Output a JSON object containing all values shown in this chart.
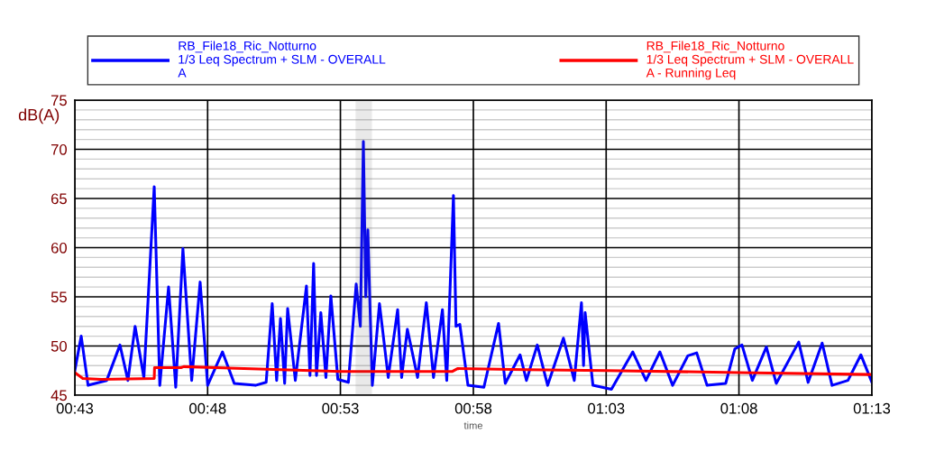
{
  "chart_data": {
    "type": "line",
    "xlabel": "time",
    "ylabel": "dB(A)",
    "xlim": [
      0.7167,
      1.2167
    ],
    "xticks": [
      {
        "value": 0.7167,
        "label": "00:43"
      },
      {
        "value": 0.8,
        "label": "00:48"
      },
      {
        "value": 0.8833,
        "label": "00:53"
      },
      {
        "value": 0.9667,
        "label": "00:58"
      },
      {
        "value": 1.05,
        "label": "01:03"
      },
      {
        "value": 1.1333,
        "label": "01:08"
      },
      {
        "value": 1.2167,
        "label": "01:13"
      }
    ],
    "ylim": [
      45,
      75
    ],
    "yticks": [
      45,
      {
        "value": 46,
        "label": null
      },
      {
        "value": 47,
        "label": null
      },
      {
        "value": 48,
        "label": null
      },
      {
        "value": 49,
        "label": null
      },
      50,
      {
        "value": 51,
        "label": null
      },
      {
        "value": 52,
        "label": null
      },
      {
        "value": 53,
        "label": null
      },
      {
        "value": 54,
        "label": null
      },
      55,
      {
        "value": 56,
        "label": null
      },
      {
        "value": 57,
        "label": null
      },
      {
        "value": 58,
        "label": null
      },
      {
        "value": 59,
        "label": null
      },
      60,
      {
        "value": 61,
        "label": null
      },
      {
        "value": 62,
        "label": null
      },
      {
        "value": 63,
        "label": null
      },
      {
        "value": 64,
        "label": null
      },
      65,
      {
        "value": 66,
        "label": null
      },
      {
        "value": 67,
        "label": null
      },
      {
        "value": 68,
        "label": null
      },
      {
        "value": 69,
        "label": null
      },
      70,
      {
        "value": 71,
        "label": null
      },
      {
        "value": 72,
        "label": null
      },
      {
        "value": 73,
        "label": null
      },
      {
        "value": 74,
        "label": null
      },
      75
    ],
    "grid": true,
    "legend": "top",
    "bands": [
      {
        "axis": "x",
        "from": 0.8932,
        "to": 0.9027,
        "color": "#555555"
      }
    ],
    "series": [
      {
        "name": "RB_File18_Ric_Notturno\n1/3 Leq Spectrum + SLM - OVERALL\nA",
        "color": "#0000ff",
        "x": [
          0.7167,
          0.7207,
          0.725,
          0.7367,
          0.745,
          0.75,
          0.7545,
          0.76,
          0.7665,
          0.77,
          0.7755,
          0.78,
          0.7845,
          0.79,
          0.7953,
          0.8,
          0.8093,
          0.8167,
          0.83,
          0.8367,
          0.8405,
          0.8433,
          0.8457,
          0.8483,
          0.8502,
          0.855,
          0.862,
          0.8642,
          0.8665,
          0.8683,
          0.871,
          0.8742,
          0.8773,
          0.8817,
          0.8883,
          0.8932,
          0.8958,
          0.8977,
          0.8992,
          0.9005,
          0.9033,
          0.9078,
          0.9133,
          0.9192,
          0.9217,
          0.9253,
          0.9317,
          0.9372,
          0.9417,
          0.9473,
          0.95,
          0.9542,
          0.9558,
          0.9582,
          0.9633,
          0.9733,
          0.9825,
          0.9867,
          0.996,
          1.0,
          1.0068,
          1.0133,
          1.0232,
          1.03,
          1.0345,
          1.0358,
          1.0368,
          1.0417,
          1.0533,
          1.0667,
          1.075,
          1.0837,
          1.0917,
          1.1012,
          1.1068,
          1.1133,
          1.125,
          1.1307,
          1.1352,
          1.1417,
          1.1505,
          1.1567,
          1.1708,
          1.1767,
          1.1855,
          1.1917,
          1.2017,
          1.2098,
          1.2167
        ],
        "values": [
          47.5,
          51.0,
          46.0,
          46.5,
          50.1,
          46.5,
          52.0,
          46.8,
          66.2,
          46.0,
          56.0,
          45.8,
          59.9,
          46.5,
          56.5,
          46.0,
          49.4,
          46.2,
          46.0,
          46.3,
          54.3,
          46.5,
          52.8,
          46.2,
          53.8,
          46.5,
          56.1,
          47.0,
          58.4,
          47.0,
          53.4,
          46.8,
          55.1,
          46.6,
          46.3,
          56.3,
          52.0,
          70.8,
          55.0,
          61.8,
          46.0,
          54.3,
          46.8,
          53.7,
          46.8,
          51.7,
          46.8,
          54.4,
          46.8,
          53.7,
          46.5,
          65.3,
          52.0,
          52.2,
          46.0,
          45.8,
          52.3,
          46.2,
          49.1,
          46.5,
          50.1,
          46.0,
          50.8,
          46.5,
          54.4,
          48.0,
          53.4,
          46.0,
          45.6,
          49.4,
          46.5,
          49.4,
          46.0,
          49.0,
          49.3,
          46.0,
          46.2,
          49.7,
          50.1,
          46.5,
          49.9,
          46.2,
          50.4,
          46.3,
          50.3,
          46.0,
          46.5,
          49.1,
          46.3
        ]
      },
      {
        "name": "RB_File18_Ric_Notturno\n1/3 Leq Spectrum + SLM - OVERALL\nA - Running Leq",
        "color": "#ff0000",
        "x": [
          0.7167,
          0.7217,
          0.7333,
          0.7665,
          0.7667,
          0.7833,
          0.785,
          0.8833,
          0.9533,
          0.9567,
          1.0,
          1.05,
          1.1333,
          1.2167
        ],
        "values": [
          47.3,
          46.7,
          46.6,
          46.7,
          47.8,
          47.8,
          47.9,
          47.4,
          47.4,
          47.7,
          47.6,
          47.5,
          47.3,
          47.1
        ]
      }
    ]
  }
}
